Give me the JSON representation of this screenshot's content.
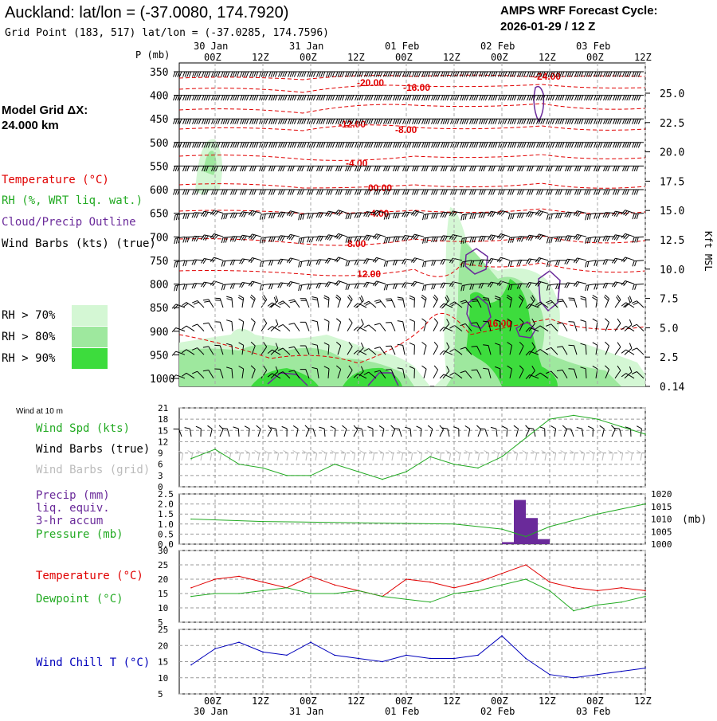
{
  "header": {
    "location_title": "Auckland:  lat/lon = (-37.0080, 174.7920)",
    "grid_point": "Grid Point (183, 517) lat/lon = (-37.0285, 174.7596)",
    "cycle_label": "AMPS WRF Forecast Cycle:",
    "cycle_value": "2026-01-29 / 12  Z",
    "model_grid_label": "Model Grid ΔX:",
    "model_grid_value": " 24.000 km"
  },
  "time_axis": {
    "hour_labels": [
      "00Z",
      "12Z",
      "00Z",
      "12Z",
      "00Z",
      "12Z",
      "00Z",
      "12Z",
      "00Z",
      "12Z"
    ],
    "date_labels": [
      "30 Jan",
      "31 Jan",
      "01 Feb",
      "02 Feb",
      "03 Feb"
    ]
  },
  "cross_section": {
    "pressure_unit": "P (mb)",
    "pressure_ticks": [
      "350",
      "400",
      "450",
      "500",
      "550",
      "600",
      "650",
      "700",
      "750",
      "800",
      "850",
      "900",
      "950",
      "1000"
    ],
    "height_ticks": [
      "25.0",
      "22.5",
      "20.0",
      "17.5",
      "15.0",
      "12.5",
      "10.0",
      "7.5",
      "5.0",
      "2.5",
      "0.14"
    ],
    "height_axis_label": "Kft MSL",
    "temperature_labels": [
      "-24.00",
      "-20.00",
      "-16.00",
      "-12.00",
      "-8.00",
      "-4.00",
      "00.00",
      "4.00",
      "8.00",
      "12.00",
      "16.00"
    ],
    "legend": {
      "temperature": "Temperature (°C)",
      "rh": "RH (%, WRT liq. wat.)",
      "cloud": "Cloud/Precip Outline",
      "wind": "Wind Barbs (kts) (true)",
      "rh70": "RH > 70%",
      "rh80": "RH > 80%",
      "rh90": "RH > 90%"
    },
    "colors": {
      "rh70": "#d4f7d4",
      "rh80": "#9ee89e",
      "rh90": "#3ddc3d",
      "temp": "#e00000",
      "cloud": "#6a2a9a"
    }
  },
  "panels": {
    "wind": {
      "small_title": "Wind at 10 m",
      "labels": {
        "speed": "Wind Spd (kts)",
        "barbs_true": "Wind Barbs (true)",
        "barbs_grid": "Wind Barbs (grid)"
      },
      "y_ticks": [
        "21",
        "18",
        "15",
        "12",
        "9",
        "6",
        "3",
        "0"
      ]
    },
    "precip": {
      "labels": {
        "precip": "Precip (mm)",
        "liq": "liq. equiv.",
        "accum": "3-hr accum",
        "pressure": "Pressure (mb)"
      },
      "y_ticks_left": [
        "2.5",
        "2.0",
        "1.5",
        "1.0",
        "0.5",
        "0.0"
      ],
      "y_ticks_right": [
        "1020",
        "1015",
        "1010",
        "1005",
        "1000"
      ],
      "right_unit": "(mb)"
    },
    "temperature": {
      "labels": {
        "temp": "Temperature (°C)",
        "dew": "Dewpoint (°C)"
      },
      "y_ticks": [
        "30",
        "25",
        "20",
        "15",
        "10",
        "5"
      ]
    },
    "windchill": {
      "labels": {
        "wc": "Wind Chill T (°C)"
      },
      "y_ticks": [
        "25",
        "20",
        "15",
        "10",
        "5"
      ]
    }
  },
  "chart_data": [
    {
      "type": "line",
      "title": "Wind at 10 m",
      "ylabel": "Wind Spd (kts)",
      "ylim": [
        0,
        21
      ],
      "x": [
        "29 Jan 18Z",
        "30 Jan 00Z",
        "30 Jan 06Z",
        "30 Jan 12Z",
        "30 Jan 18Z",
        "31 Jan 00Z",
        "31 Jan 06Z",
        "31 Jan 12Z",
        "31 Jan 18Z",
        "01 Feb 00Z",
        "01 Feb 06Z",
        "01 Feb 12Z",
        "01 Feb 18Z",
        "02 Feb 00Z",
        "02 Feb 06Z",
        "02 Feb 12Z",
        "02 Feb 18Z",
        "03 Feb 00Z",
        "03 Feb 06Z",
        "03 Feb 12Z"
      ],
      "series": [
        {
          "name": "Wind Spd (kts)",
          "color": "#22aa22",
          "values": [
            7.5,
            10,
            6,
            5,
            3,
            3,
            6,
            4,
            2,
            4,
            8,
            6,
            5,
            8,
            13,
            18,
            19,
            18,
            16,
            14
          ]
        }
      ]
    },
    {
      "type": "bar",
      "ylabel": "Precip (mm)",
      "ylim": [
        0,
        2.5
      ],
      "x": [
        "02 Feb 00Z",
        "02 Feb 03Z",
        "02 Feb 06Z",
        "02 Feb 09Z"
      ],
      "series": [
        {
          "name": "3-hr accum",
          "color": "#6a2a9a",
          "values": [
            0.1,
            2.2,
            1.3,
            0.25
          ]
        }
      ]
    },
    {
      "type": "line",
      "ylabel": "Pressure (mb)",
      "ylim": [
        1000,
        1020
      ],
      "x": [
        "29 Jan 18Z",
        "30 Jan 12Z",
        "31 Jan 12Z",
        "01 Feb 12Z",
        "02 Feb 00Z",
        "02 Feb 06Z",
        "02 Feb 12Z",
        "03 Feb 00Z",
        "03 Feb 12Z"
      ],
      "series": [
        {
          "name": "Pressure (mb)",
          "color": "#22aa22",
          "values": [
            1010,
            1009,
            1008.5,
            1008,
            1006,
            1003,
            1007,
            1012,
            1016
          ]
        }
      ]
    },
    {
      "type": "line",
      "ylim": [
        5,
        30
      ],
      "x": [
        "29 Jan 18Z",
        "30 Jan 00Z",
        "30 Jan 06Z",
        "30 Jan 12Z",
        "30 Jan 18Z",
        "31 Jan 00Z",
        "31 Jan 06Z",
        "31 Jan 12Z",
        "31 Jan 18Z",
        "01 Feb 00Z",
        "01 Feb 06Z",
        "01 Feb 12Z",
        "01 Feb 18Z",
        "02 Feb 00Z",
        "02 Feb 06Z",
        "02 Feb 12Z",
        "02 Feb 18Z",
        "03 Feb 00Z",
        "03 Feb 06Z",
        "03 Feb 12Z"
      ],
      "series": [
        {
          "name": "Temperature (°C)",
          "color": "#e00000",
          "values": [
            17,
            20,
            21,
            19,
            17,
            21,
            18,
            16,
            14,
            20,
            19,
            17,
            19,
            22,
            25,
            19,
            17,
            16,
            17,
            16
          ]
        },
        {
          "name": "Dewpoint (°C)",
          "color": "#22aa22",
          "values": [
            14,
            15,
            15,
            16,
            17,
            15,
            15,
            16,
            14,
            13,
            12,
            15,
            16,
            18,
            20,
            16,
            9,
            11,
            12,
            14
          ]
        }
      ]
    },
    {
      "type": "line",
      "ylabel": "Wind Chill T (°C)",
      "ylim": [
        5,
        25
      ],
      "x": [
        "29 Jan 18Z",
        "30 Jan 00Z",
        "30 Jan 06Z",
        "30 Jan 12Z",
        "30 Jan 18Z",
        "31 Jan 00Z",
        "31 Jan 06Z",
        "31 Jan 12Z",
        "31 Jan 18Z",
        "01 Feb 00Z",
        "01 Feb 06Z",
        "01 Feb 12Z",
        "01 Feb 18Z",
        "02 Feb 00Z",
        "02 Feb 06Z",
        "02 Feb 12Z",
        "02 Feb 18Z",
        "03 Feb 00Z",
        "03 Feb 06Z",
        "03 Feb 12Z"
      ],
      "series": [
        {
          "name": "Wind Chill T (°C)",
          "color": "#0000bb",
          "values": [
            14,
            19,
            21,
            18,
            17,
            21,
            17,
            16,
            15,
            17,
            16,
            16,
            17,
            23,
            16,
            11,
            10,
            11,
            12,
            13
          ]
        }
      ]
    }
  ]
}
